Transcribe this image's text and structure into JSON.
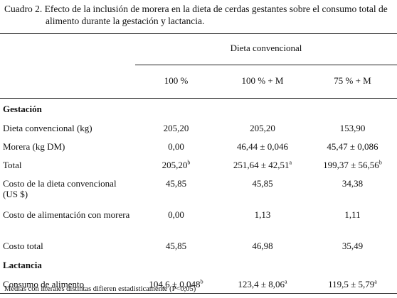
{
  "caption": "Cuadro 2. Efecto de la inclusión de morera en la dieta de cerdas gestantes sobre el consumo total de alimento durante la gestación y lactancia.",
  "table": {
    "group_header": "Dieta convencional",
    "columns": [
      "100 %",
      "100 % + M",
      "75 % + M"
    ],
    "sections": [
      {
        "title": "Gestación",
        "rows": [
          {
            "label": "Dieta convencional (kg)",
            "cells": [
              {
                "text": "205,20"
              },
              {
                "text": "205,20"
              },
              {
                "text": "153,90"
              }
            ]
          },
          {
            "label": "Morera (kg DM)",
            "cells": [
              {
                "text": "0,00"
              },
              {
                "text": "46,44 ± 0,046"
              },
              {
                "text": "45,47 ± 0,086"
              }
            ]
          },
          {
            "label": "Total",
            "cells": [
              {
                "text": "205,20",
                "sup": "b"
              },
              {
                "text": "251,64 ± 42,51",
                "sup": "a"
              },
              {
                "text": "199,37 ± 56,56",
                "sup": "b"
              }
            ]
          },
          {
            "label": "Costo de la dieta convencional (US $)",
            "cells": [
              {
                "text": "45,85"
              },
              {
                "text": "45,85"
              },
              {
                "text": "34,38"
              }
            ]
          },
          {
            "label": "Costo de alimentación con morera",
            "cells": [
              {
                "text": "0,00"
              },
              {
                "text": "1,13"
              },
              {
                "text": "1,11"
              }
            ]
          },
          {
            "label": "Costo total",
            "cells": [
              {
                "text": "45,85"
              },
              {
                "text": "46,98"
              },
              {
                "text": "35,49"
              }
            ]
          }
        ]
      },
      {
        "title": "Lactancia",
        "rows": [
          {
            "label": "Consumo de alimento",
            "cells": [
              {
                "text": "104,6 ± 0,048",
                "sup": "b"
              },
              {
                "text": "123,4 ± 8,06",
                "sup": "a"
              },
              {
                "text": "119,5 ± 5,79",
                "sup": "a"
              }
            ]
          }
        ]
      }
    ]
  },
  "footnote": "Medias con literales distintas difieren estadisticamente (P<0,05)"
}
